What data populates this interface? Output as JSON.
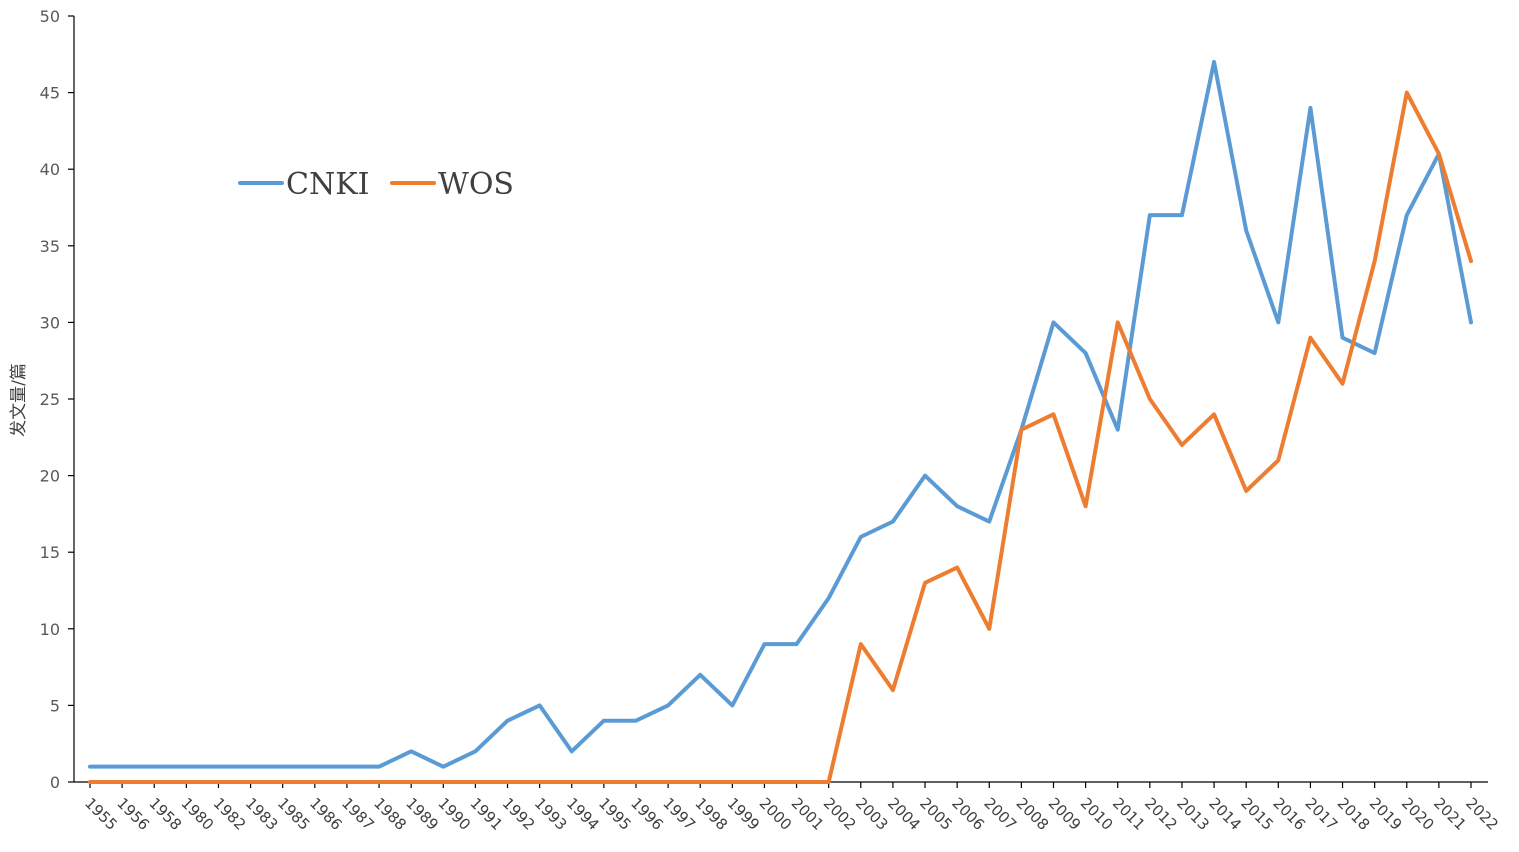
{
  "chart_data": {
    "type": "line",
    "title": "",
    "xlabel": "",
    "ylabel": "发文量/篇",
    "ylim": [
      0,
      50
    ],
    "yticks": [
      "0",
      "5",
      "10",
      "15",
      "20",
      "25",
      "30",
      "35",
      "40",
      "45",
      "50"
    ],
    "grid": false,
    "legend_position": "top-left",
    "categories": [
      "1955",
      "1956",
      "1958",
      "1980",
      "1982",
      "1983",
      "1985",
      "1986",
      "1987",
      "1988",
      "1989",
      "1990",
      "1991",
      "1992",
      "1993",
      "1994",
      "1995",
      "1996",
      "1997",
      "1998",
      "1999",
      "2000",
      "2001",
      "2002",
      "2003",
      "2004",
      "2005",
      "2006",
      "2007",
      "2008",
      "2009",
      "2010",
      "2011",
      "2012",
      "2013",
      "2014",
      "2015",
      "2016",
      "2017",
      "2018",
      "2019",
      "2020",
      "2021",
      "2022"
    ],
    "series": [
      {
        "name": "CNKI",
        "color": "#5B9BD5",
        "values": [
          1,
          1,
          1,
          1,
          1,
          1,
          1,
          1,
          1,
          1,
          2,
          1,
          2,
          4,
          5,
          2,
          4,
          4,
          5,
          7,
          5,
          9,
          9,
          12,
          16,
          17,
          20,
          18,
          17,
          23,
          30,
          28,
          23,
          37,
          37,
          47,
          36,
          30,
          44,
          29,
          28,
          37,
          41,
          30
        ]
      },
      {
        "name": "WOS",
        "color": "#ED7D31",
        "values": [
          0,
          0,
          0,
          0,
          0,
          0,
          0,
          0,
          0,
          0,
          0,
          0,
          0,
          0,
          0,
          0,
          0,
          0,
          0,
          0,
          0,
          0,
          0,
          0,
          9,
          6,
          13,
          14,
          10,
          23,
          24,
          18,
          30,
          25,
          22,
          24,
          19,
          21,
          29,
          26,
          34,
          45,
          41,
          34
        ]
      }
    ]
  }
}
